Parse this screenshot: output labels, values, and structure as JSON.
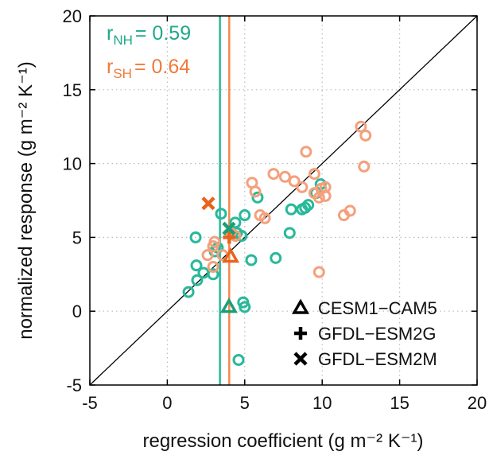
{
  "chart_data": {
    "type": "scatter",
    "xlabel": "regression coefficient (g m⁻² K⁻¹)",
    "ylabel": "normalized response (g m⁻² K⁻¹)",
    "xlim": [
      -5,
      20
    ],
    "ylim": [
      -5,
      20
    ],
    "xticks": [
      -5,
      0,
      5,
      10,
      15,
      20
    ],
    "yticks": [
      -5,
      0,
      5,
      10,
      15,
      20
    ],
    "grid": true,
    "diagonal": true,
    "legend": "lower right",
    "series": [
      {
        "color": "#27b99a",
        "marker": "circle",
        "x": [
          1.37,
          1.93,
          2.34,
          2.96,
          1.88,
          1.83,
          3.47,
          3.06,
          3.26,
          4.39,
          4.5,
          5.0,
          4.8,
          5.42,
          5.83,
          4.9,
          5.0,
          4.6,
          7.0,
          7.9,
          8.0,
          8.7,
          8.9,
          9.6,
          9.9,
          9.1
        ],
        "y": [
          1.3,
          2.1,
          2.6,
          2.5,
          3.1,
          5.0,
          6.6,
          4.05,
          4.3,
          6.0,
          5.3,
          6.5,
          5.1,
          3.46,
          7.7,
          0.6,
          0.28,
          -3.3,
          3.6,
          5.3,
          6.9,
          6.9,
          7.0,
          8.0,
          8.6,
          7.2
        ]
      },
      {
        "color": "#f4a07c",
        "marker": "circle",
        "x": [
          2.96,
          3.06,
          2.96,
          2.6,
          3.57,
          4.09,
          4.4,
          5.47,
          5.68,
          5.99,
          6.3,
          6.86,
          7.6,
          8.2,
          8.7,
          8.96,
          9.5,
          9.5,
          9.8,
          9.94,
          10.2,
          10.2,
          9.8,
          11.4,
          11.8,
          12.5,
          12.8,
          12.7
        ],
        "y": [
          3.0,
          4.7,
          4.4,
          3.8,
          3.8,
          5.3,
          5.1,
          8.7,
          8.1,
          6.5,
          6.3,
          9.3,
          9.1,
          8.8,
          8.4,
          10.8,
          9.3,
          8.0,
          7.7,
          8.3,
          8.4,
          7.8,
          2.65,
          6.5,
          6.8,
          12.5,
          11.9,
          9.8
        ]
      },
      {
        "name": "CESM1−CAM5",
        "marker": "triangle",
        "legend_color": "#000000",
        "x": [
          3.98,
          4.09
        ],
        "y": [
          0.3,
          3.7
        ],
        "colors": [
          "#1b9e77",
          "#e8641b"
        ]
      },
      {
        "name": "GFDL−ESM2G",
        "marker": "plus",
        "legend_color": "#000000",
        "x": [
          4.0
        ],
        "y": [
          5.0
        ],
        "colors": [
          "#e8641b"
        ]
      },
      {
        "name": "GFDL−ESM2M",
        "marker": "cross",
        "legend_color": "#000000",
        "x": [
          3.98,
          2.65
        ],
        "y": [
          5.6,
          7.3
        ],
        "colors": [
          "#1b9e77",
          "#e8641b"
        ]
      }
    ],
    "vlines": [
      {
        "value": 3.4,
        "color": "#27b99a"
      },
      {
        "value": 4.0,
        "color": "#f4884f"
      }
    ],
    "annotations": [
      {
        "symbol": "r",
        "subscript": "NH",
        "text": "= 0.59",
        "color": "#1fa98a"
      },
      {
        "symbol": "r",
        "subscript": "SH",
        "text": "= 0.64",
        "color": "#ee7a3c"
      }
    ]
  }
}
